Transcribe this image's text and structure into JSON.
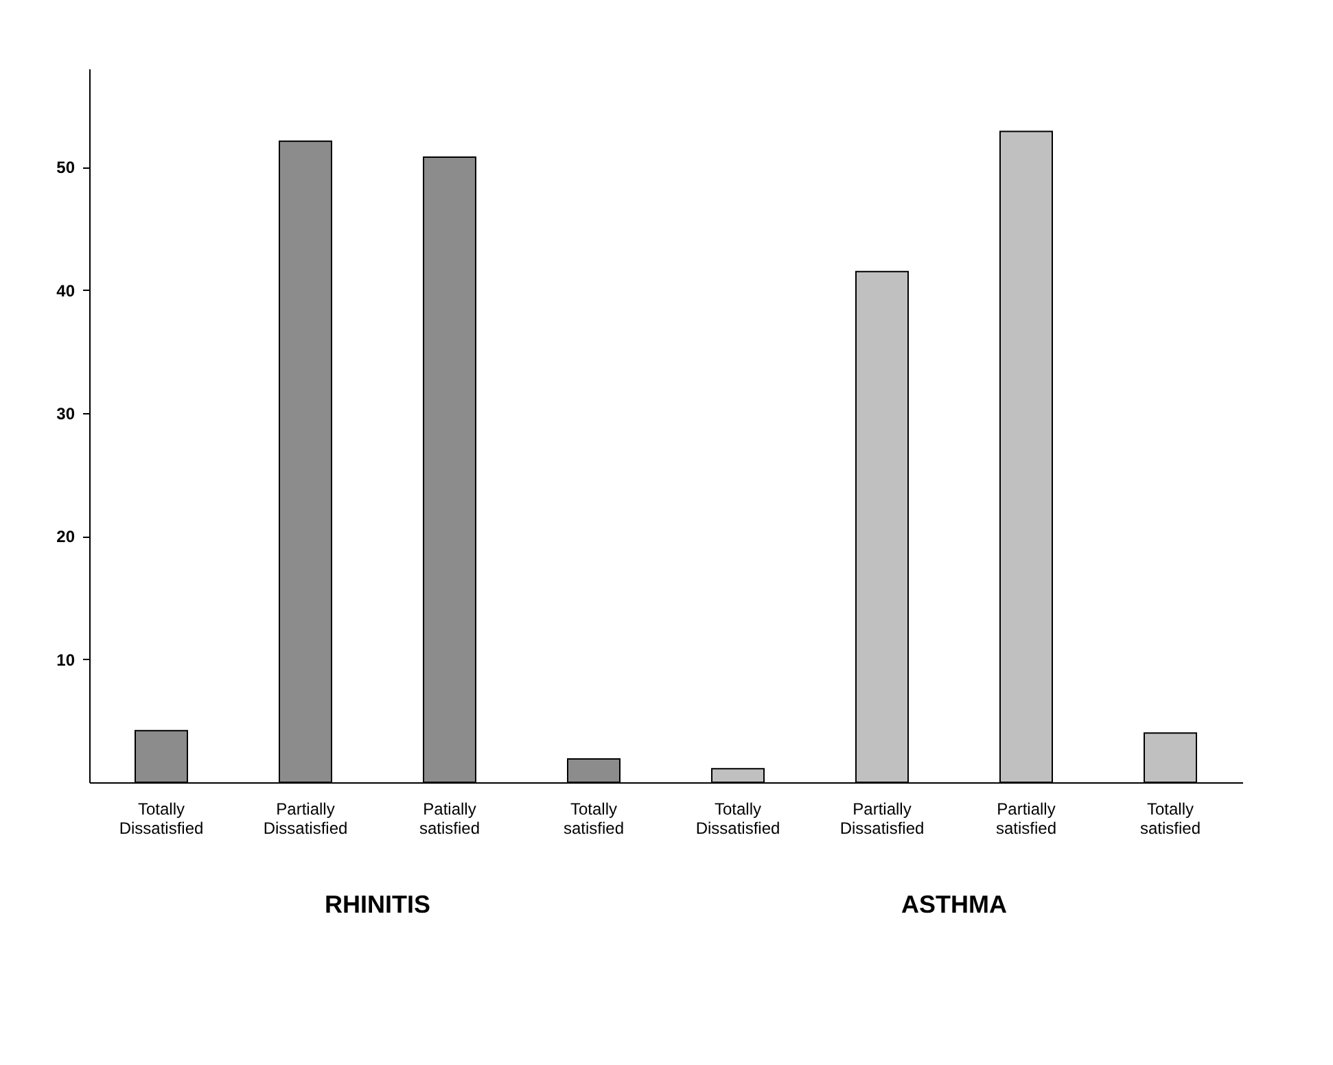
{
  "chart_data": {
    "type": "bar",
    "categories": [
      "Totally\nDissatisfied",
      "Partially\nDissatisfied",
      "Patially\nsatisfied",
      "Totally\nsatisfied",
      "Totally\nDissatisfied",
      "Partially\nDissatisfied",
      "Partially\nsatisfied",
      "Totally\nsatisfied"
    ],
    "values": [
      4.2,
      52.1,
      50.8,
      1.9,
      1.1,
      41.5,
      52.9,
      4.0
    ],
    "colors": [
      "#8c8c8c",
      "#8c8c8c",
      "#8c8c8c",
      "#8c8c8c",
      "#c0c0c0",
      "#c0c0c0",
      "#c0c0c0",
      "#c0c0c0"
    ],
    "ylim": [
      0,
      58
    ],
    "yticks": [
      10,
      20,
      30,
      40,
      50
    ],
    "grid": false,
    "annotations": [
      "RHINITIS",
      "ASTHMA"
    ]
  }
}
